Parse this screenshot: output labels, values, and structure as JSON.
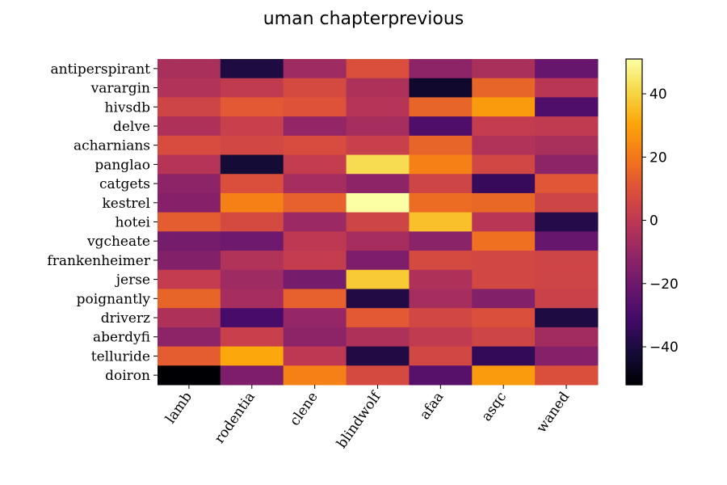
{
  "chart_data": {
    "type": "heatmap",
    "title": "uman chapterprevious",
    "colormap": "inferno",
    "rows": [
      "antiperspirant",
      "varargin",
      "hivsdb",
      "delve",
      "acharnians",
      "panglao",
      "catgets",
      "kestrel",
      "hotei",
      "vgcheate",
      "frankenheimer",
      "jerse",
      "poignantly",
      "driverz",
      "aberdyfi",
      "telluride",
      "doiron"
    ],
    "columns": [
      "lamb",
      "rodentia",
      "clene",
      "blindwolf",
      "afaa",
      "asqc",
      "waned"
    ],
    "values": [
      [
        -5,
        -40,
        -8,
        9,
        -12,
        -5,
        -22
      ],
      [
        -3,
        1,
        7,
        -4,
        -44,
        15,
        -1
      ],
      [
        5,
        12,
        10,
        -2,
        15,
        28,
        -28
      ],
      [
        -4,
        3,
        -11,
        -6,
        -28,
        2,
        1
      ],
      [
        8,
        6,
        8,
        3,
        15,
        -3,
        -5
      ],
      [
        -2,
        -42,
        2,
        42,
        22,
        6,
        -12
      ],
      [
        -12,
        9,
        -6,
        -12,
        5,
        -34,
        11
      ],
      [
        -14,
        22,
        14,
        51,
        17,
        16,
        5
      ],
      [
        13,
        7,
        -9,
        5,
        36,
        -1,
        -38
      ],
      [
        -18,
        -20,
        0,
        -6,
        -13,
        18,
        -22
      ],
      [
        -15,
        -3,
        2,
        -16,
        7,
        6,
        5
      ],
      [
        2,
        -8,
        -18,
        38,
        -4,
        6,
        5
      ],
      [
        15,
        -6,
        14,
        -39,
        -6,
        -15,
        4
      ],
      [
        -4,
        -30,
        -10,
        12,
        6,
        9,
        -40
      ],
      [
        -12,
        3,
        -12,
        -4,
        1,
        5,
        -7
      ],
      [
        13,
        31,
        0,
        -39,
        6,
        -35,
        -14
      ],
      [
        -52,
        -16,
        22,
        7,
        -26,
        28,
        9
      ]
    ],
    "vmin": -52,
    "vmax": 51,
    "colorbar": {
      "ticks": [
        -40,
        -20,
        0,
        20,
        40
      ],
      "tick_labels": [
        "−40",
        "−20",
        "0",
        "20",
        "40"
      ]
    }
  }
}
